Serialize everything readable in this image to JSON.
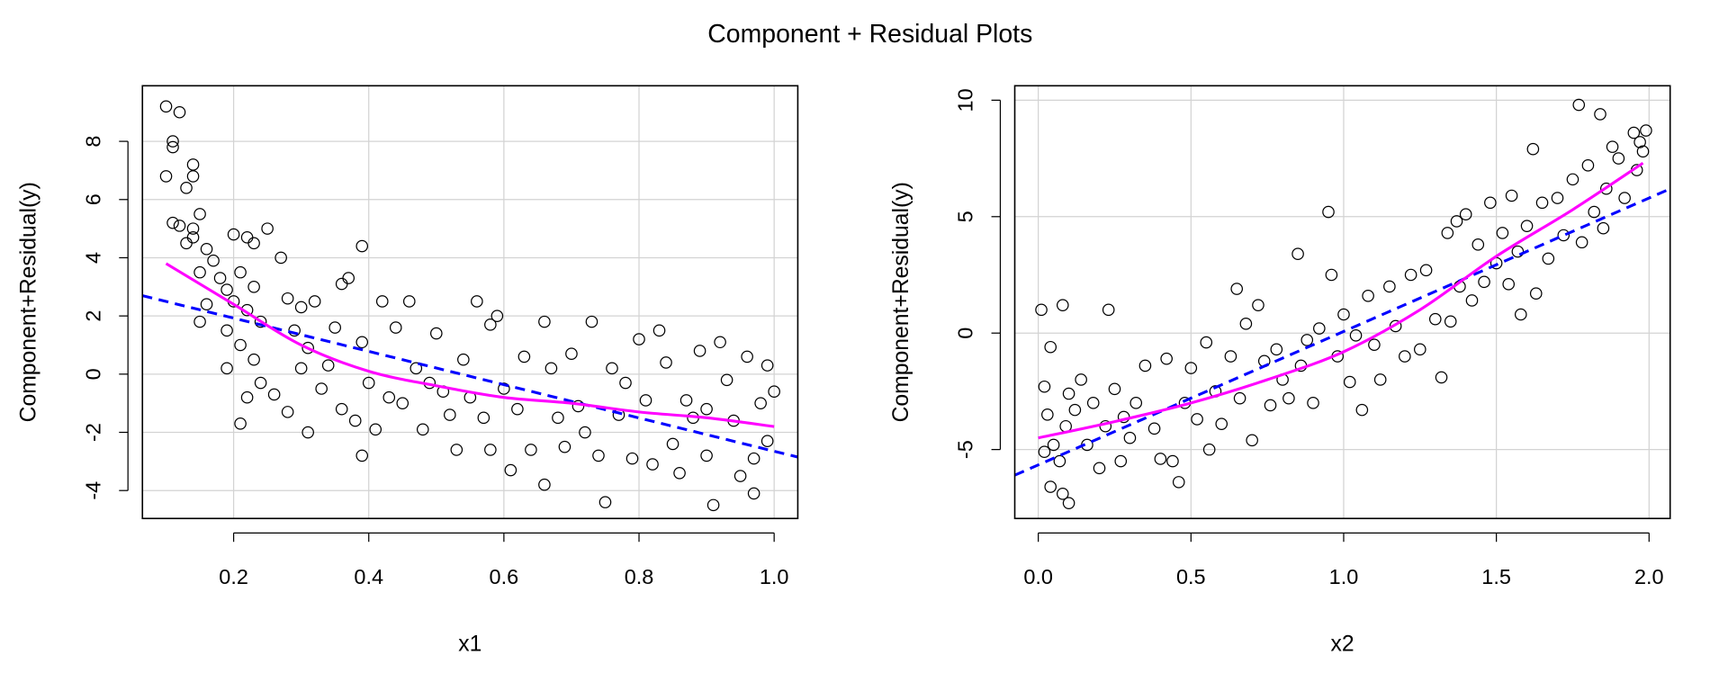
{
  "title": "Component + Residual Plots",
  "chart_data": [
    {
      "type": "scatter",
      "xlabel": "x1",
      "ylabel": "Component+Residual(y)",
      "xlim": [
        0.065,
        1.035
      ],
      "ylim": [
        -4.96,
        9.91
      ],
      "xticks": [
        "0.2",
        "0.4",
        "0.6",
        "0.8",
        "1.0"
      ],
      "yticks": [
        "-4",
        "-2",
        "0",
        "2",
        "4",
        "6",
        "8"
      ],
      "grid": true,
      "colors": {
        "points": "#000000",
        "regression": "#0000ff",
        "smooth": "#ff00ff",
        "grid": "#d3d3d3"
      },
      "regression_line": {
        "intercept": 3.07,
        "slope": -5.72
      },
      "smooth": {
        "x": [
          0.1,
          0.2,
          0.3,
          0.4,
          0.5,
          0.6,
          0.7,
          0.8,
          0.9,
          1.0
        ],
        "y": [
          3.8,
          2.4,
          1.0,
          0.1,
          -0.4,
          -0.8,
          -1.0,
          -1.3,
          -1.5,
          -1.8
        ]
      },
      "points": [
        [
          0.1,
          9.2
        ],
        [
          0.12,
          9.0
        ],
        [
          0.11,
          8.0
        ],
        [
          0.11,
          7.8
        ],
        [
          0.1,
          6.8
        ],
        [
          0.14,
          7.2
        ],
        [
          0.13,
          6.4
        ],
        [
          0.14,
          6.8
        ],
        [
          0.11,
          5.2
        ],
        [
          0.12,
          5.1
        ],
        [
          0.14,
          5.0
        ],
        [
          0.15,
          5.5
        ],
        [
          0.13,
          4.5
        ],
        [
          0.14,
          4.7
        ],
        [
          0.16,
          4.3
        ],
        [
          0.17,
          3.9
        ],
        [
          0.15,
          3.5
        ],
        [
          0.18,
          3.3
        ],
        [
          0.19,
          2.9
        ],
        [
          0.16,
          2.4
        ],
        [
          0.15,
          1.8
        ],
        [
          0.19,
          1.5
        ],
        [
          0.2,
          4.8
        ],
        [
          0.22,
          4.7
        ],
        [
          0.23,
          4.5
        ],
        [
          0.25,
          5.0
        ],
        [
          0.27,
          4.0
        ],
        [
          0.21,
          3.5
        ],
        [
          0.23,
          3.0
        ],
        [
          0.2,
          2.5
        ],
        [
          0.22,
          2.2
        ],
        [
          0.24,
          1.8
        ],
        [
          0.21,
          1.0
        ],
        [
          0.19,
          0.2
        ],
        [
          0.23,
          0.5
        ],
        [
          0.24,
          -0.3
        ],
        [
          0.22,
          -0.8
        ],
        [
          0.21,
          -1.7
        ],
        [
          0.26,
          -0.7
        ],
        [
          0.28,
          2.6
        ],
        [
          0.3,
          2.3
        ],
        [
          0.32,
          2.5
        ],
        [
          0.29,
          1.5
        ],
        [
          0.31,
          0.9
        ],
        [
          0.3,
          0.2
        ],
        [
          0.33,
          -0.5
        ],
        [
          0.31,
          -2.0
        ],
        [
          0.28,
          -1.3
        ],
        [
          0.35,
          1.6
        ],
        [
          0.36,
          3.1
        ],
        [
          0.37,
          3.3
        ],
        [
          0.34,
          0.3
        ],
        [
          0.36,
          -1.2
        ],
        [
          0.38,
          -1.6
        ],
        [
          0.39,
          4.4
        ],
        [
          0.39,
          1.1
        ],
        [
          0.4,
          -0.3
        ],
        [
          0.41,
          -1.9
        ],
        [
          0.39,
          -2.8
        ],
        [
          0.42,
          2.5
        ],
        [
          0.44,
          1.6
        ],
        [
          0.43,
          -0.8
        ],
        [
          0.45,
          -1.0
        ],
        [
          0.46,
          2.5
        ],
        [
          0.47,
          0.2
        ],
        [
          0.48,
          -1.9
        ],
        [
          0.49,
          -0.3
        ],
        [
          0.5,
          1.4
        ],
        [
          0.51,
          -0.6
        ],
        [
          0.52,
          -1.4
        ],
        [
          0.53,
          -2.6
        ],
        [
          0.54,
          0.5
        ],
        [
          0.55,
          -0.8
        ],
        [
          0.56,
          2.5
        ],
        [
          0.57,
          -1.5
        ],
        [
          0.58,
          1.7
        ],
        [
          0.59,
          2.0
        ],
        [
          0.58,
          -2.6
        ],
        [
          0.6,
          -0.5
        ],
        [
          0.61,
          -3.3
        ],
        [
          0.62,
          -1.2
        ],
        [
          0.63,
          0.6
        ],
        [
          0.64,
          -2.6
        ],
        [
          0.66,
          1.8
        ],
        [
          0.66,
          -3.8
        ],
        [
          0.67,
          0.2
        ],
        [
          0.68,
          -1.5
        ],
        [
          0.69,
          -2.5
        ],
        [
          0.7,
          0.7
        ],
        [
          0.71,
          -1.1
        ],
        [
          0.72,
          -2.0
        ],
        [
          0.73,
          1.8
        ],
        [
          0.74,
          -2.8
        ],
        [
          0.75,
          -4.4
        ],
        [
          0.76,
          0.2
        ],
        [
          0.77,
          -1.4
        ],
        [
          0.78,
          -0.3
        ],
        [
          0.79,
          -2.9
        ],
        [
          0.8,
          1.2
        ],
        [
          0.81,
          -0.9
        ],
        [
          0.82,
          -3.1
        ],
        [
          0.83,
          1.5
        ],
        [
          0.84,
          0.4
        ],
        [
          0.85,
          -2.4
        ],
        [
          0.86,
          -3.4
        ],
        [
          0.87,
          -0.9
        ],
        [
          0.88,
          -1.5
        ],
        [
          0.89,
          0.8
        ],
        [
          0.9,
          -2.8
        ],
        [
          0.91,
          -4.5
        ],
        [
          0.92,
          1.1
        ],
        [
          0.93,
          -0.2
        ],
        [
          0.94,
          -1.6
        ],
        [
          0.95,
          -3.5
        ],
        [
          0.96,
          0.6
        ],
        [
          0.97,
          -4.1
        ],
        [
          0.98,
          -1.0
        ],
        [
          0.99,
          0.3
        ],
        [
          0.99,
          -2.3
        ],
        [
          1.0,
          -0.6
        ],
        [
          0.97,
          -2.9
        ],
        [
          0.9,
          -1.2
        ]
      ]
    },
    {
      "type": "scatter",
      "xlabel": "x2",
      "ylabel": "Component+Residual(y)",
      "xlim": [
        -0.077,
        2.069
      ],
      "ylim": [
        -7.96,
        10.62
      ],
      "xticks": [
        "0.0",
        "0.5",
        "1.0",
        "1.5",
        "2.0"
      ],
      "yticks": [
        "-5",
        "0",
        "5",
        "10"
      ],
      "grid": true,
      "colors": {
        "points": "#000000",
        "regression": "#0000ff",
        "smooth": "#ff00ff",
        "grid": "#d3d3d3"
      },
      "regression_line": {
        "intercept": -5.66,
        "slope": 5.73
      },
      "smooth": {
        "x": [
          0.0,
          0.25,
          0.5,
          0.75,
          1.0,
          1.25,
          1.5,
          1.75,
          1.98
        ],
        "y": [
          -4.5,
          -3.8,
          -3.0,
          -2.0,
          -0.8,
          1.0,
          3.3,
          5.3,
          7.3
        ]
      },
      "points": [
        [
          0.01,
          1.0
        ],
        [
          0.04,
          -0.6
        ],
        [
          0.08,
          1.2
        ],
        [
          0.23,
          1.0
        ],
        [
          0.02,
          -2.3
        ],
        [
          0.03,
          -3.5
        ],
        [
          0.05,
          -4.8
        ],
        [
          0.02,
          -5.1
        ],
        [
          0.04,
          -6.6
        ],
        [
          0.08,
          -6.9
        ],
        [
          0.1,
          -7.3
        ],
        [
          0.07,
          -5.5
        ],
        [
          0.09,
          -4.0
        ],
        [
          0.12,
          -3.3
        ],
        [
          0.14,
          -2.0
        ],
        [
          0.1,
          -2.6
        ],
        [
          0.16,
          -4.8
        ],
        [
          0.18,
          -3.0
        ],
        [
          0.2,
          -5.8
        ],
        [
          0.22,
          -4.0
        ],
        [
          0.25,
          -2.4
        ],
        [
          0.27,
          -5.5
        ],
        [
          0.28,
          -3.6
        ],
        [
          0.3,
          -4.5
        ],
        [
          0.32,
          -3.0
        ],
        [
          0.35,
          -1.4
        ],
        [
          0.38,
          -4.1
        ],
        [
          0.4,
          -5.4
        ],
        [
          0.42,
          -1.1
        ],
        [
          0.44,
          -5.5
        ],
        [
          0.46,
          -6.4
        ],
        [
          0.48,
          -3.0
        ],
        [
          0.5,
          -1.5
        ],
        [
          0.52,
          -3.7
        ],
        [
          0.55,
          -0.4
        ],
        [
          0.56,
          -5.0
        ],
        [
          0.58,
          -2.5
        ],
        [
          0.6,
          -3.9
        ],
        [
          0.63,
          -1.0
        ],
        [
          0.65,
          1.9
        ],
        [
          0.66,
          -2.8
        ],
        [
          0.68,
          0.4
        ],
        [
          0.7,
          -4.6
        ],
        [
          0.72,
          1.2
        ],
        [
          0.74,
          -1.2
        ],
        [
          0.76,
          -3.1
        ],
        [
          0.78,
          -0.7
        ],
        [
          0.8,
          -2.0
        ],
        [
          0.82,
          -2.8
        ],
        [
          0.85,
          3.4
        ],
        [
          0.86,
          -1.4
        ],
        [
          0.88,
          -0.3
        ],
        [
          0.9,
          -3.0
        ],
        [
          0.92,
          0.2
        ],
        [
          0.95,
          5.2
        ],
        [
          0.96,
          2.5
        ],
        [
          0.98,
          -1.0
        ],
        [
          1.0,
          0.8
        ],
        [
          1.02,
          -2.1
        ],
        [
          1.04,
          -0.1
        ],
        [
          1.06,
          -3.3
        ],
        [
          1.08,
          1.6
        ],
        [
          1.1,
          -0.5
        ],
        [
          1.12,
          -2.0
        ],
        [
          1.15,
          2.0
        ],
        [
          1.17,
          0.3
        ],
        [
          1.2,
          -1.0
        ],
        [
          1.22,
          2.5
        ],
        [
          1.25,
          -0.7
        ],
        [
          1.27,
          2.7
        ],
        [
          1.3,
          0.6
        ],
        [
          1.32,
          -1.9
        ],
        [
          1.34,
          4.3
        ],
        [
          1.35,
          0.5
        ],
        [
          1.37,
          4.8
        ],
        [
          1.38,
          2.0
        ],
        [
          1.4,
          5.1
        ],
        [
          1.42,
          1.4
        ],
        [
          1.44,
          3.8
        ],
        [
          1.46,
          2.2
        ],
        [
          1.48,
          5.6
        ],
        [
          1.5,
          3.0
        ],
        [
          1.52,
          4.3
        ],
        [
          1.54,
          2.1
        ],
        [
          1.55,
          5.9
        ],
        [
          1.57,
          3.5
        ],
        [
          1.58,
          0.8
        ],
        [
          1.6,
          4.6
        ],
        [
          1.62,
          7.9
        ],
        [
          1.63,
          1.7
        ],
        [
          1.65,
          5.6
        ],
        [
          1.67,
          3.2
        ],
        [
          1.7,
          5.8
        ],
        [
          1.72,
          4.2
        ],
        [
          1.75,
          6.6
        ],
        [
          1.77,
          9.8
        ],
        [
          1.78,
          3.9
        ],
        [
          1.8,
          7.2
        ],
        [
          1.82,
          5.2
        ],
        [
          1.84,
          9.4
        ],
        [
          1.86,
          6.2
        ],
        [
          1.88,
          8.0
        ],
        [
          1.9,
          7.5
        ],
        [
          1.92,
          5.8
        ],
        [
          1.95,
          8.6
        ],
        [
          1.97,
          8.2
        ],
        [
          1.98,
          7.8
        ],
        [
          1.99,
          8.7
        ],
        [
          1.96,
          7.0
        ],
        [
          1.85,
          4.5
        ]
      ]
    }
  ]
}
